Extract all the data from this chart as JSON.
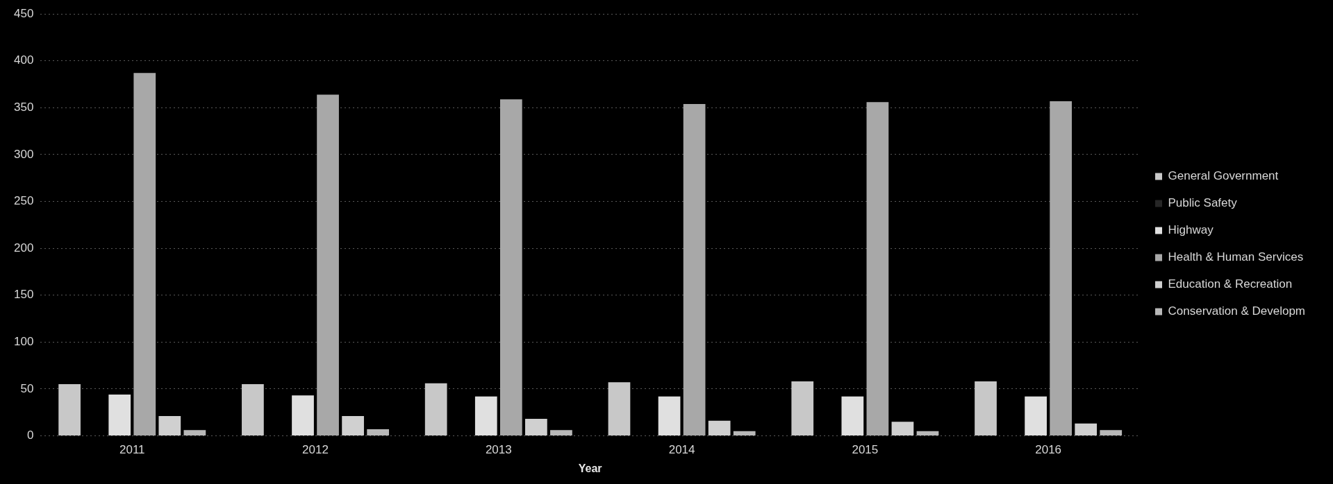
{
  "chart_data": {
    "type": "bar",
    "xlabel": "Year",
    "categories": [
      "2011",
      "2012",
      "2013",
      "2014",
      "2015",
      "2016"
    ],
    "series": [
      {
        "name": "General Government",
        "color": "#c8c8c8",
        "values": [
          55,
          55,
          56,
          57,
          58,
          58
        ]
      },
      {
        "name": "Public Safety",
        "color": "#262626",
        "values": [
          null,
          null,
          null,
          null,
          null,
          null
        ]
      },
      {
        "name": "Highway",
        "color": "#e0e0e0",
        "values": [
          44,
          43,
          42,
          42,
          42,
          42
        ]
      },
      {
        "name": "Health & Human Services",
        "color": "#a8a8a8",
        "values": [
          387,
          364,
          359,
          354,
          356,
          357
        ]
      },
      {
        "name": "Education & Recreation",
        "color": "#d0d0d0",
        "values": [
          21,
          21,
          18,
          16,
          15,
          13
        ]
      },
      {
        "name": "Conservation & Developm",
        "color": "#b8b8b8",
        "values": [
          6,
          7,
          6,
          5,
          5,
          6
        ]
      }
    ],
    "ylim": [
      0,
      450
    ],
    "yticks": [
      0,
      50,
      100,
      150,
      200,
      250,
      300,
      350,
      400,
      450
    ],
    "grid": "y",
    "legend": "right"
  }
}
